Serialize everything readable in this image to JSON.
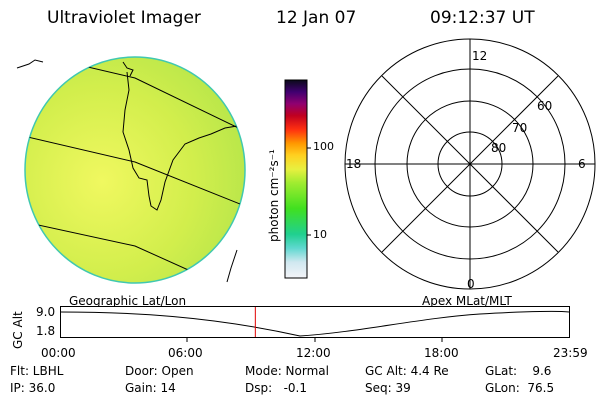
{
  "header": {
    "instrument": "Ultraviolet Imager",
    "date": "12 Jan 07",
    "time": "09:12:37 UT"
  },
  "colorbar": {
    "unit_label": "photon cm⁻²s⁻¹",
    "tick_100": "100",
    "tick_10": "10"
  },
  "polar_plot": {
    "label_12": "12",
    "label_18": "18",
    "label_6": "6",
    "label_0": "0",
    "lat_60": "60",
    "lat_70": "70",
    "lat_80": "80"
  },
  "timeline": {
    "left_label": "Geographic Lat/Lon",
    "right_label": "Apex MLat/MLT",
    "y_axis_label": "GC Alt",
    "y_max": "9.0",
    "y_min": "1.8",
    "x_ticks": [
      "00:00",
      "06:00",
      "12:00",
      "18:00",
      "23:59"
    ],
    "current_marker_hour": 9.21
  },
  "status": {
    "filter": "Flt: LBHL",
    "ip": "IP: 36.0",
    "door": "Door: Open",
    "gain": "Gain: 14",
    "mode": "Mode: Normal",
    "dsp": "Dsp:   -0.1",
    "gc_alt": "GC Alt: 4.4 Re",
    "seq": "Seq: 39",
    "glat": "GLat:    9.6",
    "glon": "GLon:  76.5"
  },
  "colors": {
    "image_fill": "#c8ec46",
    "marker": "#e00000"
  }
}
